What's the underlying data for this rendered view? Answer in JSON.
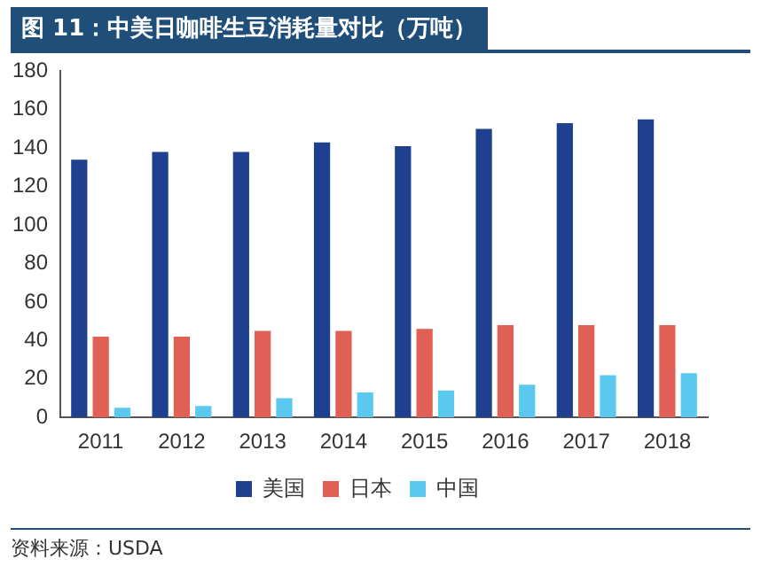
{
  "chart_data": {
    "type": "bar",
    "title": "图 11：中美日咖啡生豆消耗量对比（万吨）",
    "categories": [
      "2011",
      "2012",
      "2013",
      "2014",
      "2015",
      "2016",
      "2017",
      "2018"
    ],
    "series": [
      {
        "name": "美国",
        "color": "#1f3f8f",
        "values": [
          134,
          138,
          138,
          143,
          141,
          150,
          153,
          155
        ]
      },
      {
        "name": "日本",
        "color": "#e06055",
        "values": [
          42,
          42,
          45,
          45,
          46,
          48,
          48,
          48
        ]
      },
      {
        "name": "中国",
        "color": "#5bc8f0",
        "values": [
          5,
          6,
          10,
          13,
          14,
          17,
          22,
          23
        ]
      }
    ],
    "ylim": [
      0,
      180
    ],
    "yticks": [
      0,
      20,
      40,
      60,
      80,
      100,
      120,
      140,
      160,
      180
    ],
    "grid": false,
    "legend": "bottom",
    "annotations": [
      "资料来源：USDA"
    ]
  }
}
